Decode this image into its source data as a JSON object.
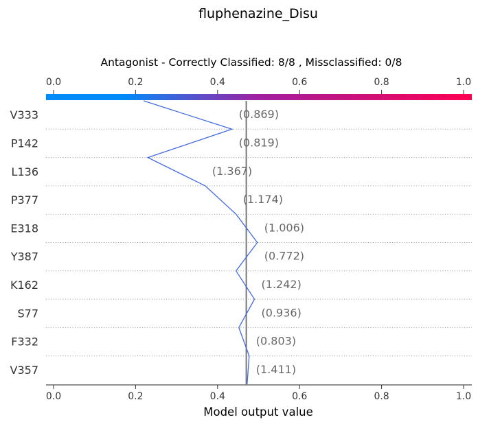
{
  "chart_data": {
    "type": "line",
    "title": "fluphenazine_Disu",
    "subtitle": "Antagonist - Correctly Classified: 8/8 , Missclassified: 0/8",
    "xlabel": "Model output value",
    "xlim": [
      0.0,
      1.0
    ],
    "xticks": [
      "0.0",
      "0.2",
      "0.4",
      "0.6",
      "0.8",
      "1.0"
    ],
    "colorbar": {
      "from": "#008bfb",
      "mid": "#a020a0",
      "to": "#ff0052"
    },
    "base_value": 0.47,
    "features": [
      "V333",
      "P142",
      "L136",
      "P377",
      "E318",
      "Y387",
      "K162",
      "S77",
      "F332",
      "V357"
    ],
    "feature_values": [
      "(0.869)",
      "(0.819)",
      "(1.367)",
      "(1.174)",
      "(1.006)",
      "(0.772)",
      "(1.242)",
      "(0.936)",
      "(0.803)",
      "(1.411)"
    ],
    "path_x": [
      0.22,
      0.435,
      0.23,
      0.37,
      0.445,
      0.497,
      0.445,
      0.49,
      0.452,
      0.477,
      0.472
    ],
    "line_color": "#4169e1",
    "grid": "dotted horizontal"
  }
}
